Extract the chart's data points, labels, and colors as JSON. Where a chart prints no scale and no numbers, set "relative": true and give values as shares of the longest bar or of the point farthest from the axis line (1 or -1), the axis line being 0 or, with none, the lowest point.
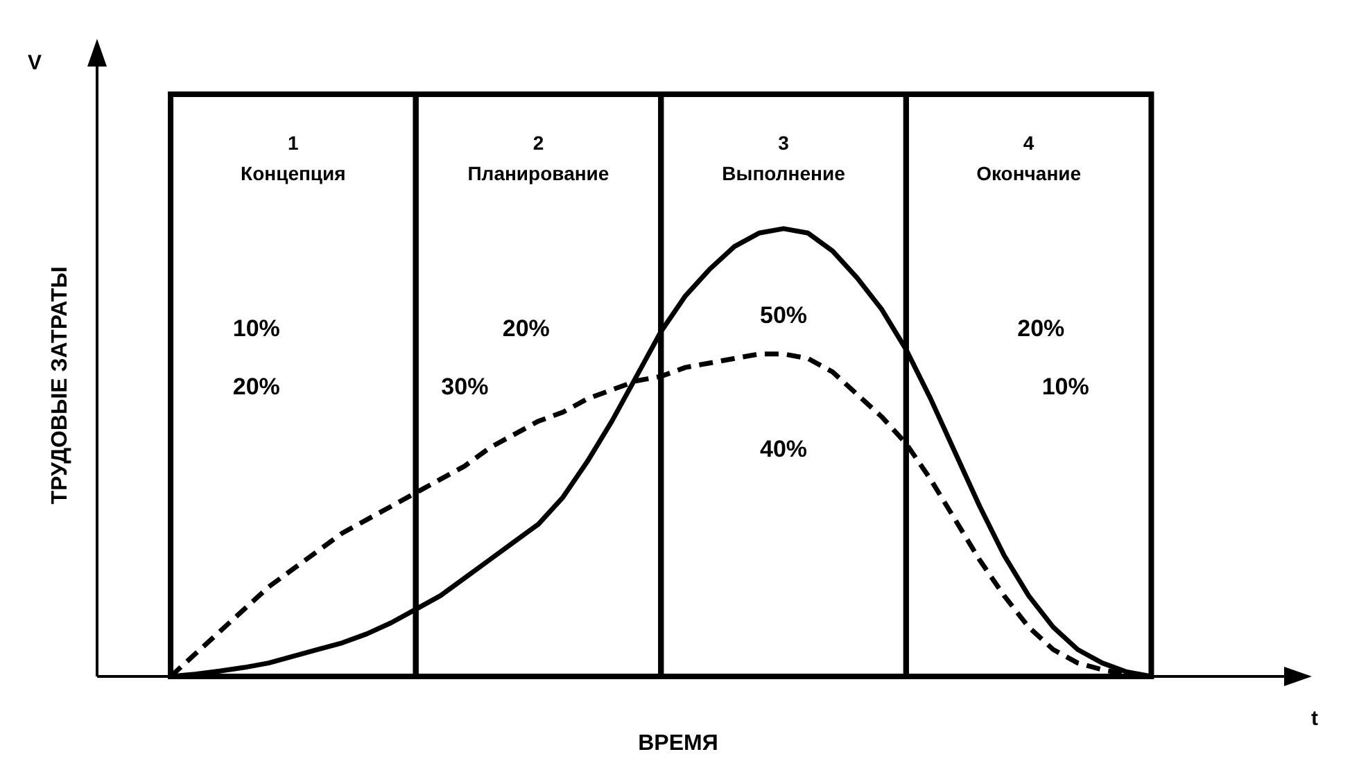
{
  "chart_data": {
    "type": "line",
    "relative": true,
    "xlabel": "ВРЕМЯ",
    "ylabel": "ТРУДОВЫЕ ЗАТРАТЫ",
    "tick_labels": false,
    "marker": "none",
    "categories": [
      null,
      null,
      null,
      null,
      null,
      null,
      null,
      null,
      null,
      null,
      null,
      null,
      null,
      null,
      null,
      null,
      null,
      null,
      null,
      null,
      null,
      null,
      null,
      null,
      null,
      null,
      null,
      null,
      null,
      null,
      null,
      null,
      null,
      null,
      null,
      null,
      null,
      null,
      null,
      null,
      null
    ],
    "series": [
      {
        "color": "#000000",
        "line_style": "solid",
        "values": [
          0,
          0.005,
          0.012,
          0.02,
          0.03,
          0.045,
          0.06,
          0.075,
          0.095,
          0.12,
          0.15,
          0.18,
          0.22,
          0.26,
          0.3,
          0.34,
          0.4,
          0.48,
          0.57,
          0.67,
          0.77,
          0.85,
          0.91,
          0.96,
          0.99,
          1,
          0.99,
          0.95,
          0.89,
          0.82,
          0.73,
          0.62,
          0.5,
          0.38,
          0.27,
          0.18,
          0.11,
          0.06,
          0.03,
          0.01,
          0
        ]
      },
      {
        "color": "#000000",
        "line_style": "dashed",
        "values": [
          0,
          0.05,
          0.1,
          0.15,
          0.2,
          0.24,
          0.28,
          0.32,
          0.35,
          0.38,
          0.41,
          0.44,
          0.47,
          0.51,
          0.54,
          0.57,
          0.59,
          0.62,
          0.64,
          0.66,
          0.67,
          0.69,
          0.7,
          0.71,
          0.72,
          0.72,
          0.71,
          0.68,
          0.63,
          0.58,
          0.52,
          0.44,
          0.35,
          0.26,
          0.18,
          0.11,
          0.06,
          0.03,
          0.015,
          0.005,
          0
        ]
      }
    ],
    "annotations": [
      "1\nКонцепция",
      "2\nПланирование",
      "3\nВыполнение",
      "4\nОкончание",
      "10%",
      "20%",
      "50%",
      "20%",
      "20%",
      "30%",
      "40%",
      "10%",
      "V",
      "t"
    ]
  }
}
